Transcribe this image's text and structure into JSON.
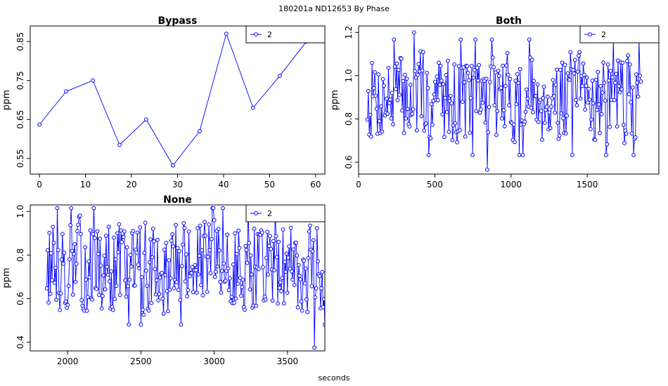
{
  "figure": {
    "suptitle": "180201a    ND12653   By Phase",
    "xlabel": "seconds",
    "series_color": "#0000ff"
  },
  "chart_data": [
    {
      "id": "bypass",
      "type": "line",
      "title": "Bypass",
      "ylabel": "ppm",
      "xlim": [
        -2,
        62
      ],
      "ylim": [
        0.51,
        0.89
      ],
      "xticks": [
        0,
        10,
        20,
        30,
        40,
        50,
        60
      ],
      "yticks": [
        0.55,
        0.65,
        0.75,
        0.85
      ],
      "legend": {
        "placement": "top-right",
        "entries": [
          "2"
        ]
      },
      "grid": false,
      "series": [
        {
          "name": "2",
          "seed": 0,
          "x": [
            0,
            5.8,
            11.6,
            17.4,
            23.2,
            29,
            34.8,
            40.6,
            46.4,
            52.2,
            58
          ],
          "y": [
            0.637,
            0.722,
            0.75,
            0.585,
            0.65,
            0.532,
            0.62,
            0.87,
            0.68,
            0.762,
            0.85
          ]
        }
      ]
    },
    {
      "id": "both",
      "type": "line",
      "title": "Both",
      "ylabel": "ppm",
      "xlim": [
        0,
        1970
      ],
      "ylim": [
        0.545,
        1.23
      ],
      "xticks": [
        0,
        500,
        1000,
        1500
      ],
      "yticks": [
        0.6,
        0.8,
        1.0,
        1.2
      ],
      "ytick_labels": [
        "0.6",
        "0.8",
        "1.0",
        "1.2"
      ],
      "legend": {
        "placement": "top-right",
        "entries": [
          "2"
        ]
      },
      "grid": false,
      "series": [
        {
          "name": "2",
          "x_start": 58,
          "x_end": 1852,
          "n": 300,
          "mean": 0.9,
          "min": 0.565,
          "max": 1.2,
          "seed": 7,
          "x": [],
          "y": []
        }
      ]
    },
    {
      "id": "none",
      "type": "line",
      "title": "None",
      "ylabel": "ppm",
      "xlim": [
        1745,
        3755
      ],
      "ylim": [
        0.36,
        1.03
      ],
      "xticks": [
        2000,
        2500,
        3000,
        3500
      ],
      "yticks": [
        0.4,
        0.6,
        0.8,
        1.0
      ],
      "ytick_labels": [
        "0.4",
        "0.6",
        "0.8",
        "1.0"
      ],
      "legend": {
        "placement": "top-right",
        "entries": [
          "2"
        ]
      },
      "grid": false,
      "series": [
        {
          "name": "2",
          "x_start": 1858,
          "x_end": 3755,
          "n": 320,
          "mean": 0.75,
          "min": 0.375,
          "max": 1.015,
          "seed": 13,
          "x": [],
          "y": []
        }
      ]
    }
  ]
}
